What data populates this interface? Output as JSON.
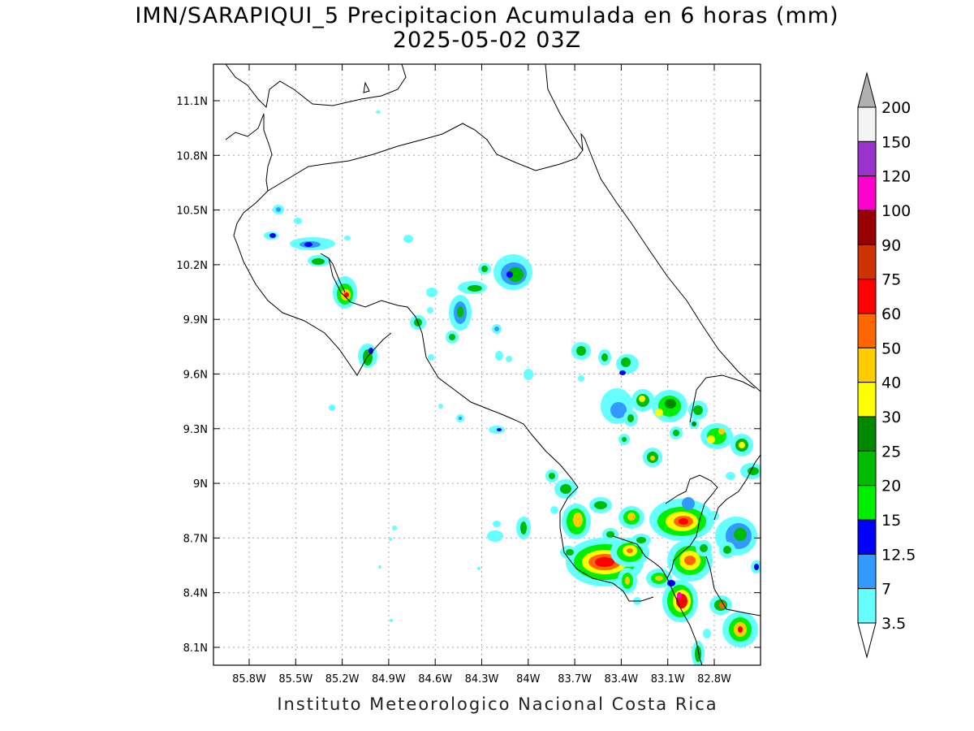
{
  "title": {
    "line1": "IMN/SARAPIQUI_5 Precipitacion Acumulada en 6 horas (mm)",
    "line2": "2025-05-02 03Z"
  },
  "footer": "Instituto Meteorologico Nacional Costa Rica",
  "map": {
    "lon_ticks": [
      "85.8W",
      "85.5W",
      "85.2W",
      "84.9W",
      "84.6W",
      "84.3W",
      "84W",
      "83.7W",
      "83.4W",
      "83.1W",
      "82.8W"
    ],
    "lat_ticks": [
      "11.1N",
      "10.8N",
      "10.5N",
      "10.2N",
      "9.9N",
      "9.6N",
      "9.3N",
      "9N",
      "8.7N",
      "8.4N",
      "8.1N"
    ]
  },
  "legend": {
    "labels": [
      "200",
      "150",
      "120",
      "100",
      "90",
      "75",
      "60",
      "50",
      "40",
      "30",
      "25",
      "20",
      "15",
      "12.5",
      "7",
      "3.5"
    ],
    "colors": [
      "#f4f4f4",
      "#9933cc",
      "#ff00cc",
      "#990000",
      "#cc3300",
      "#ff0000",
      "#ff6600",
      "#ffcc00",
      "#ffff00",
      "#008800",
      "#00bb00",
      "#00ee00",
      "#0000ff",
      "#3399ff",
      "#66ffff"
    ],
    "over_color": "#b0b0b0"
  }
}
